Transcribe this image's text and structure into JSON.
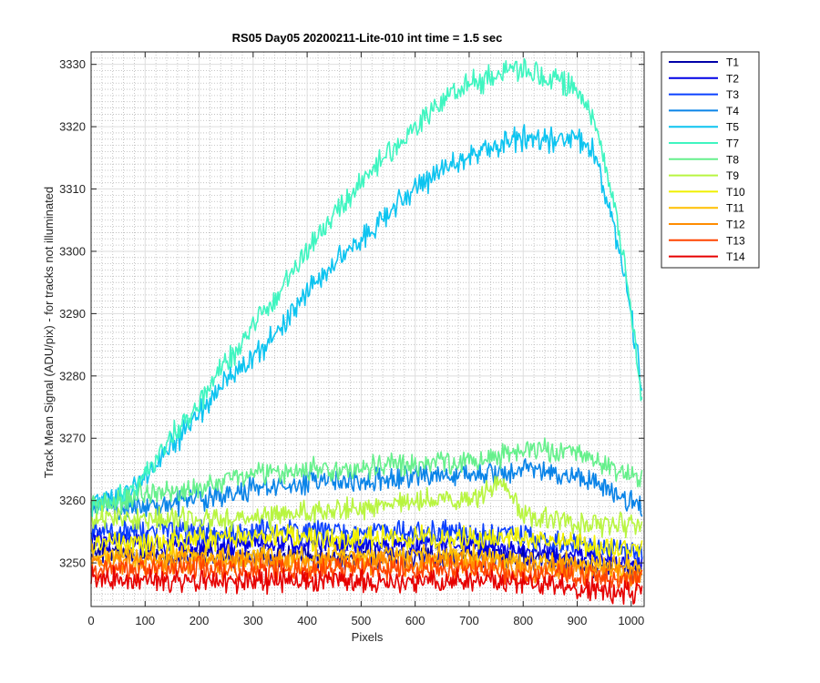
{
  "chart_data": {
    "type": "line",
    "title": "RS05 Day05 20200211-Lite-010 int time = 1.5 sec",
    "xlabel": "Pixels",
    "ylabel": "Track Mean Signal (ADU/pix) - for tracks not illuminated",
    "xlim": [
      0,
      1024
    ],
    "ylim": [
      3243,
      3332
    ],
    "xticks": [
      0,
      100,
      200,
      300,
      400,
      500,
      600,
      700,
      800,
      900,
      1000
    ],
    "yticks": [
      3250,
      3260,
      3270,
      3280,
      3290,
      3300,
      3310,
      3320,
      3330
    ],
    "grid": true,
    "minor_grid": true,
    "legend_position": "outside-top-right",
    "series": [
      {
        "name": "T1",
        "color": "#0000a8",
        "x": [
          0,
          100,
          200,
          300,
          400,
          500,
          600,
          700,
          800,
          900,
          1020
        ],
        "y": [
          3252,
          3251,
          3251,
          3251,
          3251,
          3251,
          3251,
          3251,
          3251,
          3250,
          3249
        ]
      },
      {
        "name": "T2",
        "color": "#0000e6",
        "x": [
          0,
          100,
          200,
          300,
          400,
          500,
          600,
          700,
          800,
          900,
          1020
        ],
        "y": [
          3254,
          3253,
          3253,
          3253,
          3253,
          3253,
          3253,
          3253,
          3252,
          3251,
          3250
        ]
      },
      {
        "name": "T3",
        "color": "#0a40ff",
        "x": [
          0,
          100,
          200,
          300,
          400,
          500,
          600,
          700,
          800,
          900,
          1020
        ],
        "y": [
          3255,
          3255,
          3255,
          3255,
          3255,
          3255,
          3255,
          3255,
          3254,
          3253,
          3252
        ]
      },
      {
        "name": "T4",
        "color": "#0a84e8",
        "x": [
          0,
          100,
          200,
          300,
          400,
          500,
          600,
          700,
          800,
          900,
          1020
        ],
        "y": [
          3259,
          3259,
          3260,
          3262,
          3263,
          3263,
          3264,
          3264,
          3265,
          3264,
          3259
        ]
      },
      {
        "name": "T5",
        "color": "#0dc4f0",
        "x": [
          0,
          50,
          100,
          150,
          200,
          250,
          300,
          350,
          400,
          450,
          500,
          550,
          600,
          650,
          700,
          750,
          800,
          850,
          900,
          930,
          960,
          990,
          1020
        ],
        "y": [
          3260,
          3260,
          3264,
          3269,
          3274,
          3279,
          3283,
          3288,
          3293,
          3298,
          3302,
          3306,
          3310,
          3313,
          3315,
          3317,
          3318,
          3318,
          3318,
          3316,
          3307,
          3295,
          3278
        ]
      },
      {
        "name": "T7",
        "color": "#3ff5c0",
        "x": [
          0,
          50,
          100,
          150,
          200,
          250,
          300,
          350,
          400,
          450,
          500,
          550,
          600,
          650,
          700,
          750,
          800,
          850,
          900,
          930,
          960,
          990,
          1020
        ],
        "y": [
          3259,
          3260,
          3264,
          3270,
          3276,
          3282,
          3288,
          3294,
          3300,
          3306,
          3311,
          3316,
          3320,
          3324,
          3327,
          3328,
          3329,
          3328,
          3326,
          3321,
          3311,
          3296,
          3277
        ]
      },
      {
        "name": "T8",
        "color": "#66f08c",
        "x": [
          0,
          100,
          200,
          300,
          400,
          500,
          600,
          700,
          800,
          900,
          1020
        ],
        "y": [
          3259,
          3261,
          3262,
          3264,
          3265,
          3265,
          3266,
          3266,
          3268,
          3268,
          3263
        ]
      },
      {
        "name": "T9",
        "color": "#b8f540",
        "x": [
          0,
          100,
          200,
          300,
          400,
          500,
          600,
          700,
          760,
          800,
          900,
          1020
        ],
        "y": [
          3257,
          3257,
          3257,
          3257,
          3258,
          3259,
          3260,
          3260,
          3263,
          3258,
          3256,
          3256
        ]
      },
      {
        "name": "T10",
        "color": "#f0f000",
        "x": [
          0,
          100,
          200,
          300,
          400,
          500,
          600,
          700,
          800,
          900,
          1020
        ],
        "y": [
          3253,
          3253,
          3254,
          3254,
          3254,
          3254,
          3254,
          3254,
          3254,
          3253,
          3252
        ]
      },
      {
        "name": "T11",
        "color": "#ffbf00",
        "x": [
          0,
          100,
          200,
          300,
          400,
          500,
          600,
          700,
          800,
          900,
          1020
        ],
        "y": [
          3251,
          3251,
          3251,
          3251,
          3251,
          3251,
          3251,
          3251,
          3250,
          3250,
          3249
        ]
      },
      {
        "name": "T12",
        "color": "#ff8c00",
        "x": [
          0,
          100,
          200,
          300,
          400,
          500,
          600,
          700,
          800,
          900,
          1020
        ],
        "y": [
          3250,
          3250,
          3250,
          3250,
          3250,
          3250,
          3250,
          3250,
          3249,
          3249,
          3248
        ]
      },
      {
        "name": "T13",
        "color": "#ff4400",
        "x": [
          0,
          100,
          200,
          300,
          400,
          500,
          600,
          700,
          800,
          900,
          1020
        ],
        "y": [
          3249,
          3249,
          3249,
          3249,
          3249,
          3249,
          3249,
          3249,
          3248,
          3248,
          3247
        ]
      },
      {
        "name": "T14",
        "color": "#e60000",
        "x": [
          0,
          100,
          200,
          300,
          400,
          500,
          600,
          700,
          800,
          900,
          1020
        ],
        "y": [
          3248,
          3247,
          3247,
          3247,
          3247,
          3247,
          3247,
          3247,
          3247,
          3246,
          3245
        ]
      }
    ]
  }
}
